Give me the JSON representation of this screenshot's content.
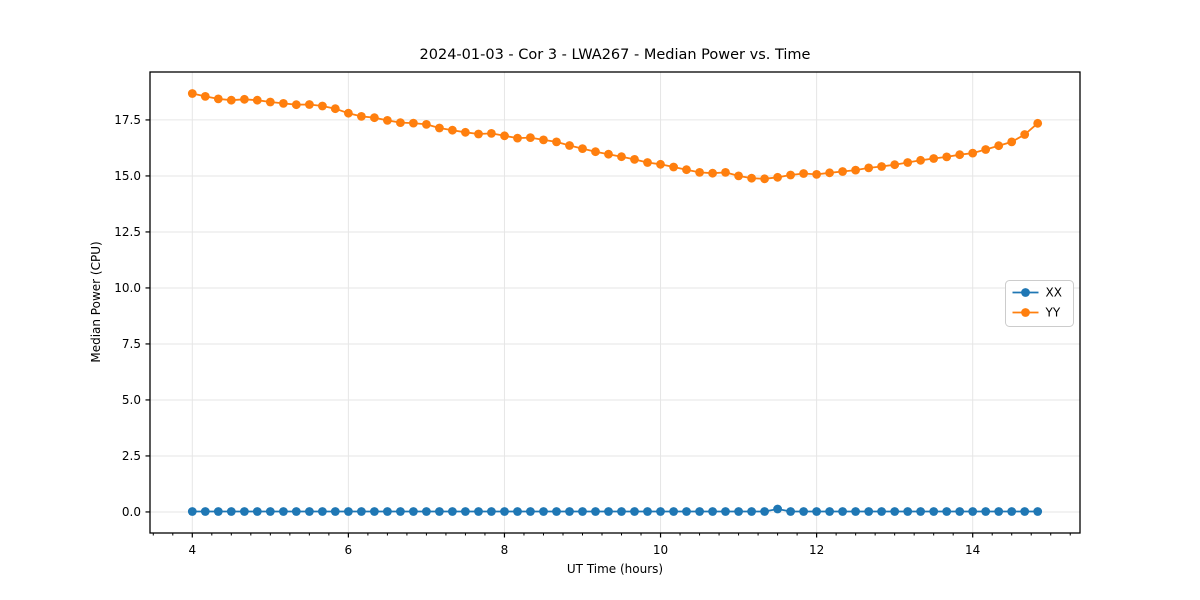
{
  "figure": {
    "background": "#ffffff"
  },
  "chart_data": {
    "type": "line",
    "title": "2024-01-03 - Cor 3 - LWA267 - Median Power vs. Time",
    "xlabel": "UT Time (hours)",
    "ylabel": "Median Power (CPU)",
    "xlim": [
      3.458,
      15.375
    ],
    "ylim": [
      -0.94,
      19.64
    ],
    "grid": true,
    "grid_color": "#e6e6e6",
    "spine_color": "#000000",
    "legend_position": "center right",
    "x_major_ticks": [
      4,
      6,
      8,
      10,
      12,
      14
    ],
    "x_tick_labels": [
      "4",
      "6",
      "8",
      "10",
      "12",
      "14"
    ],
    "x_minor_tick_step": 0.25,
    "y_major_ticks": [
      0.0,
      2.5,
      5.0,
      7.5,
      10.0,
      12.5,
      15.0,
      17.5
    ],
    "y_tick_labels": [
      "0.0",
      "2.5",
      "5.0",
      "7.5",
      "10.0",
      "12.5",
      "15.0",
      "17.5"
    ],
    "x": [
      4,
      4.167,
      4.333,
      4.5,
      4.667,
      4.833,
      5,
      5.167,
      5.333,
      5.5,
      5.667,
      5.833,
      6,
      6.167,
      6.333,
      6.5,
      6.667,
      6.833,
      7,
      7.167,
      7.333,
      7.5,
      7.667,
      7.833,
      8,
      8.167,
      8.333,
      8.5,
      8.667,
      8.833,
      9,
      9.167,
      9.333,
      9.5,
      9.667,
      9.833,
      10,
      10.167,
      10.333,
      10.5,
      10.667,
      10.833,
      11,
      11.167,
      11.333,
      11.5,
      11.667,
      11.833,
      12,
      12.167,
      12.333,
      12.5,
      12.667,
      12.833,
      13,
      13.167,
      13.333,
      13.5,
      13.667,
      13.833,
      14,
      14.167,
      14.333,
      14.5,
      14.667,
      14.833
    ],
    "series": [
      {
        "name": "XX",
        "color": "#1f77b4",
        "values": [
          0.02,
          0.02,
          0.02,
          0.02,
          0.02,
          0.02,
          0.02,
          0.02,
          0.02,
          0.02,
          0.02,
          0.02,
          0.02,
          0.02,
          0.02,
          0.02,
          0.02,
          0.02,
          0.02,
          0.02,
          0.02,
          0.02,
          0.02,
          0.02,
          0.02,
          0.02,
          0.02,
          0.02,
          0.02,
          0.02,
          0.02,
          0.02,
          0.02,
          0.02,
          0.02,
          0.02,
          0.02,
          0.02,
          0.02,
          0.02,
          0.02,
          0.02,
          0.02,
          0.02,
          0.02,
          0.13,
          0.02,
          0.02,
          0.02,
          0.02,
          0.02,
          0.02,
          0.02,
          0.02,
          0.02,
          0.02,
          0.02,
          0.02,
          0.02,
          0.02,
          0.02,
          0.02,
          0.02,
          0.02,
          0.02,
          0.02
        ]
      },
      {
        "name": "YY",
        "color": "#ff7f0e",
        "values": [
          18.68,
          18.55,
          18.44,
          18.38,
          18.42,
          18.38,
          18.3,
          18.24,
          18.18,
          18.19,
          18.12,
          18.0,
          17.8,
          17.66,
          17.6,
          17.48,
          17.38,
          17.36,
          17.3,
          17.14,
          17.04,
          16.95,
          16.87,
          16.9,
          16.79,
          16.69,
          16.71,
          16.61,
          16.52,
          16.36,
          16.22,
          16.08,
          15.97,
          15.86,
          15.74,
          15.6,
          15.52,
          15.4,
          15.28,
          15.16,
          15.12,
          15.16,
          15.0,
          14.9,
          14.87,
          14.94,
          15.04,
          15.11,
          15.07,
          15.14,
          15.2,
          15.26,
          15.36,
          15.42,
          15.5,
          15.6,
          15.7,
          15.78,
          15.85,
          15.95,
          16.02,
          16.18,
          16.35,
          16.52,
          16.85,
          17.35
        ]
      }
    ]
  }
}
